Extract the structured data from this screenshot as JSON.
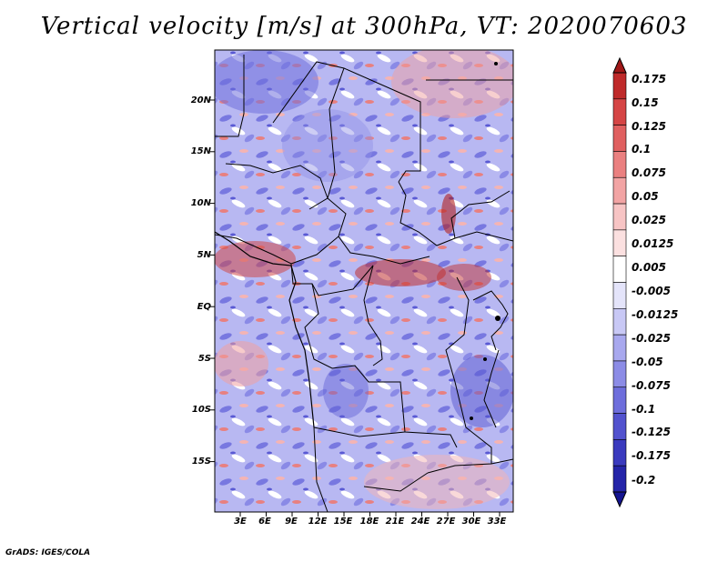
{
  "title": "Vertical velocity [m/s] at 300hPa, VT: 2020070603",
  "credit": "GrADS: IGES/COLA",
  "map": {
    "lat_labels": [
      "20N",
      "15N",
      "10N",
      "5N",
      "EQ",
      "5S",
      "10S",
      "15S"
    ],
    "lon_labels": [
      "3E",
      "6E",
      "9E",
      "12E",
      "15E",
      "18E",
      "21E",
      "24E",
      "27E",
      "30E",
      "33E"
    ]
  },
  "colorbar": {
    "labels": [
      "0.175",
      "0.15",
      "0.125",
      "0.1",
      "0.075",
      "0.05",
      "0.025",
      "0.0125",
      "0.005",
      "-0.005",
      "-0.0125",
      "-0.025",
      "-0.05",
      "-0.075",
      "-0.1",
      "-0.125",
      "-0.175",
      "-0.2"
    ],
    "colors": [
      "#a01818",
      "#bf2a2a",
      "#d54545",
      "#e06060",
      "#ea8080",
      "#f2a4a4",
      "#f7c4c4",
      "#fbe0e0",
      "#ffffff",
      "#e4e4fa",
      "#c8c8f5",
      "#a8a8ee",
      "#8c8ce6",
      "#6e6edc",
      "#5252ce",
      "#3a3abe",
      "#2424a8",
      "#141490"
    ]
  }
}
